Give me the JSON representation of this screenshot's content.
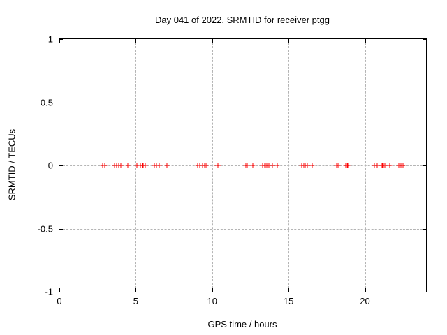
{
  "chart_data": {
    "type": "scatter",
    "title": "Day 041 of 2022, SRMTID for receiver ptgg",
    "xlabel": "GPS time / hours",
    "ylabel": "SRMTID / TECUs",
    "xlim": [
      0,
      24
    ],
    "ylim": [
      -1,
      1
    ],
    "grid": true,
    "legend": "none",
    "marker_style": "plus",
    "colors": {
      "marker": "#ff0000",
      "grid": "#b4b4b4",
      "axis": "#000000",
      "background": "#ffffff",
      "text": "#000000"
    },
    "xticks": [
      {
        "value": 0,
        "label": "0"
      },
      {
        "value": 5,
        "label": "5"
      },
      {
        "value": 10,
        "label": "10"
      },
      {
        "value": 15,
        "label": "15"
      },
      {
        "value": 20,
        "label": "20"
      }
    ],
    "yticks": [
      {
        "value": 1,
        "label": "1"
      },
      {
        "value": 0.5,
        "label": "0.5"
      },
      {
        "value": 0,
        "label": "0"
      },
      {
        "value": -0.5,
        "label": "-0.5"
      },
      {
        "value": -1,
        "label": "-1"
      }
    ],
    "series": [
      {
        "name": "SRMTID",
        "x": [
          2.83,
          2.98,
          3.59,
          3.75,
          3.89,
          4.01,
          4.48,
          5.09,
          5.29,
          5.44,
          5.5,
          5.63,
          6.2,
          6.37,
          6.52,
          7.05,
          9.03,
          9.2,
          9.35,
          9.5,
          9.62,
          10.35,
          10.43,
          12.2,
          12.3,
          12.67,
          13.3,
          13.42,
          13.5,
          13.58,
          13.7,
          13.95,
          14.28,
          15.88,
          16.0,
          16.1,
          16.22,
          16.55,
          18.15,
          18.22,
          18.75,
          18.82,
          18.9,
          20.62,
          20.8,
          21.1,
          21.18,
          21.27,
          21.35,
          21.6,
          22.2,
          22.35,
          22.5
        ],
        "y": [
          0,
          0,
          0,
          0,
          0,
          0,
          0,
          0,
          0,
          0,
          0,
          0,
          0,
          0,
          0,
          0,
          0,
          0,
          0,
          0,
          0,
          0,
          0,
          0,
          0,
          0,
          0,
          0,
          0,
          0,
          0,
          0,
          0,
          0,
          0,
          0,
          0,
          0,
          0,
          0,
          0,
          0,
          0,
          0,
          0,
          0,
          0,
          0,
          0,
          0,
          0,
          0,
          0
        ]
      }
    ]
  }
}
